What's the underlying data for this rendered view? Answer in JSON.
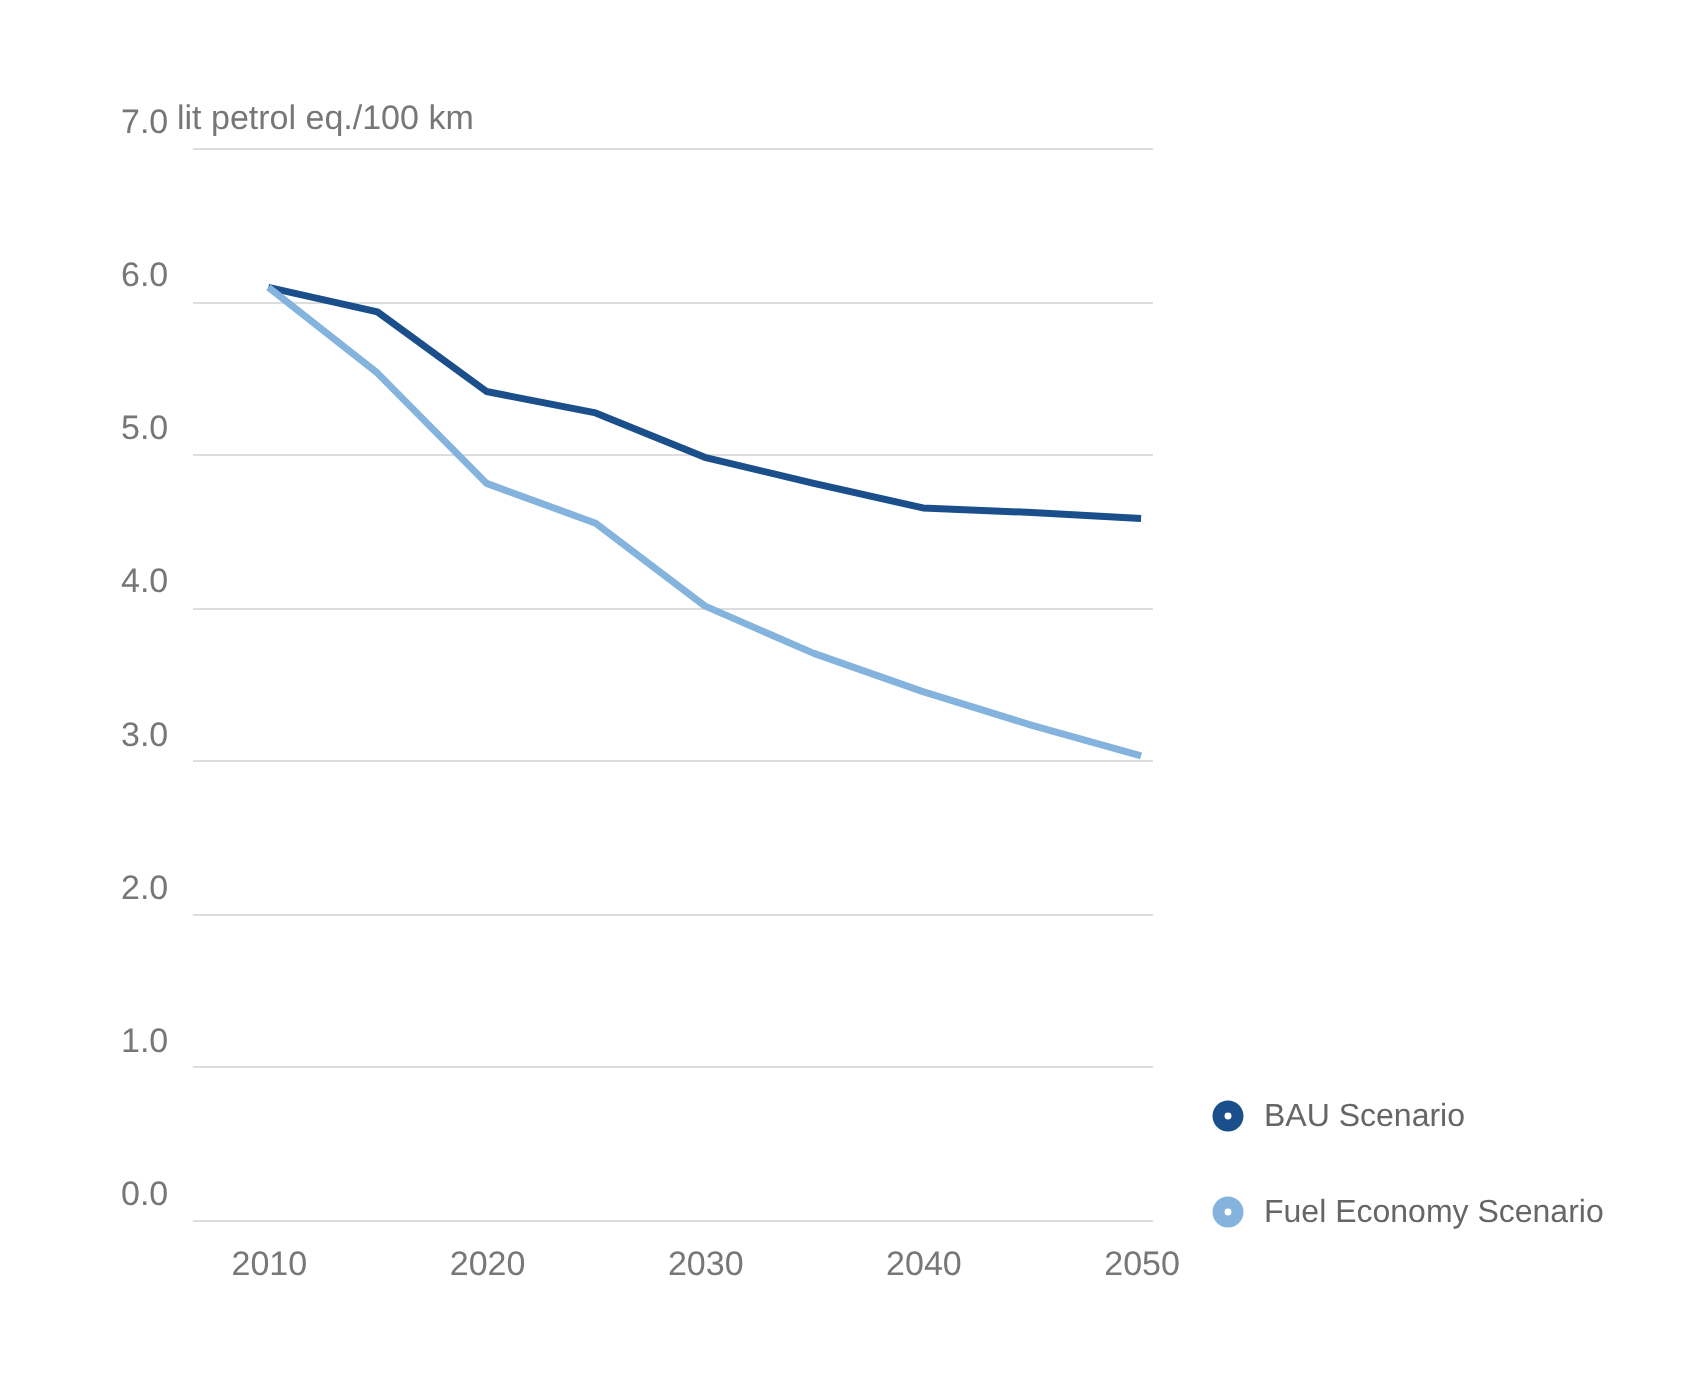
{
  "chart_data": {
    "type": "line",
    "ylabel": "lit petrol eq./100 km",
    "x": [
      2010,
      2015,
      2020,
      2025,
      2030,
      2035,
      2040,
      2045,
      2050
    ],
    "series": [
      {
        "name": "BAU Scenario",
        "color": "#1a4f8b",
        "values": [
          6.09,
          5.93,
          5.41,
          5.27,
          4.98,
          4.81,
          4.65,
          4.62,
          4.58
        ]
      },
      {
        "name": "Fuel Economy Scenario",
        "color": "#84b3dd",
        "values": [
          6.09,
          5.53,
          4.81,
          4.55,
          4.01,
          3.7,
          3.45,
          3.23,
          3.03
        ]
      }
    ],
    "xlim": [
      2006.5,
      2050.5
    ],
    "xticks": [
      2010,
      2020,
      2030,
      2040,
      2050
    ],
    "ylim": [
      0,
      7
    ],
    "yticks": [
      {
        "value": 0,
        "label": "0.0"
      },
      {
        "value": 1,
        "label": "1.0"
      },
      {
        "value": 2,
        "label": "2.0"
      },
      {
        "value": 3,
        "label": "3.0"
      },
      {
        "value": 4,
        "label": "4.0"
      },
      {
        "value": 5,
        "label": "5.0"
      },
      {
        "value": 6,
        "label": "6.0"
      },
      {
        "value": 7,
        "label": "7.0"
      }
    ],
    "grid": "y",
    "legend": "bottom right",
    "marker": "none",
    "line_style": "solid"
  }
}
